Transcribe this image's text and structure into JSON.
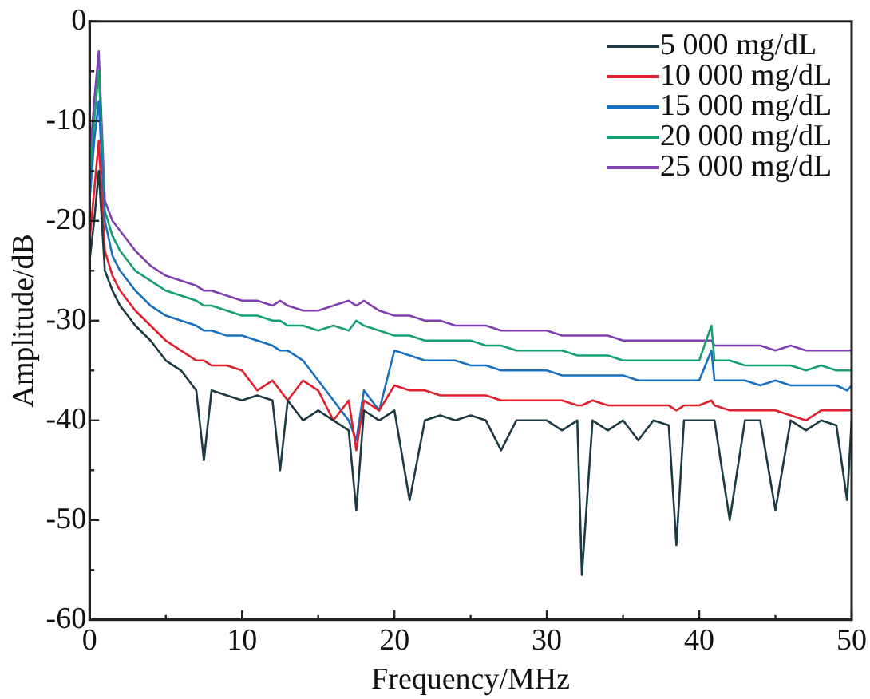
{
  "chart_data": {
    "type": "line",
    "xlabel": "Frequency/MHz",
    "ylabel": "Amplitude/dB",
    "x": [
      0,
      0.3,
      0.6,
      1,
      1.5,
      2,
      3,
      4,
      5,
      6,
      7,
      7.5,
      8,
      9,
      10,
      11,
      12,
      12.5,
      13,
      14,
      15,
      16,
      17,
      17.5,
      18,
      19,
      20,
      21,
      22,
      23,
      24,
      25,
      26,
      27,
      28,
      29,
      30,
      31,
      32,
      32.3,
      33,
      34,
      35,
      36,
      37,
      38,
      38.5,
      39,
      40,
      40.8,
      41,
      42,
      43,
      44,
      45,
      46,
      47,
      48,
      49,
      49.7,
      50
    ],
    "series": [
      {
        "name": "5 000 mg/dL",
        "color": "#1c3a44",
        "values": [
          -24,
          -20,
          -15,
          -25,
          -27,
          -28.5,
          -30.5,
          -32,
          -34,
          -35,
          -37,
          -44,
          -37,
          -37.5,
          -38,
          -37.5,
          -38,
          -45,
          -38,
          -40,
          -39,
          -40,
          -41,
          -49,
          -39,
          -40,
          -39,
          -48,
          -40,
          -39.5,
          -40,
          -39.5,
          -40,
          -43,
          -40,
          -40,
          -40,
          -41,
          -40,
          -55.5,
          -40,
          -41,
          -40,
          -42,
          -40,
          -40.5,
          -52.5,
          -40,
          -40,
          -40,
          -40,
          -50,
          -40,
          -40,
          -49,
          -40,
          -41,
          -40,
          -40.5,
          -48,
          -40
        ]
      },
      {
        "name": "10 000 mg/dL",
        "color": "#e0202c",
        "values": [
          -22,
          -17,
          -12,
          -23,
          -25.5,
          -27,
          -29,
          -30.5,
          -32,
          -33,
          -34,
          -34,
          -34.5,
          -34.5,
          -35,
          -37,
          -36,
          -37,
          -38,
          -36,
          -37,
          -40,
          -38,
          -43,
          -38,
          -39,
          -36.5,
          -37,
          -37,
          -37.5,
          -37.5,
          -37.5,
          -37.5,
          -38,
          -38,
          -38,
          -38,
          -38,
          -38.5,
          -38.5,
          -38,
          -38.5,
          -38.5,
          -38.5,
          -38.5,
          -38.5,
          -39,
          -38.5,
          -38.5,
          -38,
          -38.5,
          -39,
          -39,
          -39,
          -39,
          -39.5,
          -40,
          -39,
          -39,
          -39,
          -39
        ]
      },
      {
        "name": "15 000 mg/dL",
        "color": "#1a70c0",
        "values": [
          -18,
          -12,
          -8,
          -20,
          -23.5,
          -25,
          -27,
          -28.5,
          -29.5,
          -30,
          -30.5,
          -31,
          -31,
          -31.5,
          -31.5,
          -32,
          -32.5,
          -33,
          -33,
          -34,
          -36,
          -38,
          -40,
          -42,
          -37,
          -39,
          -33,
          -33.5,
          -34,
          -34,
          -34,
          -34.5,
          -34.5,
          -35,
          -35,
          -35,
          -35,
          -35.5,
          -35.5,
          -35.5,
          -35.5,
          -35.5,
          -35.5,
          -36,
          -36,
          -36,
          -36,
          -36,
          -36,
          -33,
          -36,
          -36,
          -36,
          -36.5,
          -36,
          -36.5,
          -36.5,
          -36.5,
          -36.5,
          -37,
          -36.5
        ]
      },
      {
        "name": "20 000 mg/dL",
        "color": "#16a070",
        "values": [
          -16,
          -10,
          -5,
          -19,
          -21.5,
          -23,
          -25,
          -26,
          -27,
          -27.5,
          -28,
          -28.5,
          -28.5,
          -29,
          -29.5,
          -29.5,
          -30,
          -30,
          -30.5,
          -30.5,
          -31,
          -30.5,
          -31,
          -30,
          -30.5,
          -31,
          -31.5,
          -31.5,
          -32,
          -32,
          -32,
          -32,
          -32.5,
          -32.5,
          -33,
          -33,
          -33,
          -33,
          -33.5,
          -33.5,
          -33.5,
          -33.5,
          -34,
          -34,
          -34,
          -34,
          -34,
          -34,
          -34,
          -30.5,
          -34,
          -34,
          -34.5,
          -34.5,
          -34.5,
          -34.5,
          -35,
          -34.5,
          -35,
          -35,
          -35
        ]
      },
      {
        "name": "25 000 mg/dL",
        "color": "#8040b0",
        "values": [
          -14,
          -8,
          -3,
          -18,
          -20,
          -21,
          -23,
          -24.5,
          -25.5,
          -26,
          -26.5,
          -27,
          -27,
          -27.5,
          -28,
          -28,
          -28.5,
          -28,
          -28.5,
          -29,
          -29,
          -28.5,
          -28,
          -28.5,
          -28,
          -29,
          -29.5,
          -29.5,
          -30,
          -30,
          -30.5,
          -30.5,
          -30.5,
          -31,
          -31,
          -31,
          -31,
          -31.5,
          -31.5,
          -31.5,
          -31.5,
          -31.5,
          -32,
          -32,
          -32,
          -32,
          -32,
          -32,
          -32,
          -32,
          -32.5,
          -32.5,
          -32.5,
          -32.5,
          -33,
          -32.5,
          -33,
          -33,
          -33,
          -33,
          -33
        ]
      }
    ],
    "xlim": [
      0,
      50
    ],
    "xticks": [
      0,
      {
        "value": 5,
        "label": null
      },
      10,
      {
        "value": 15,
        "label": null
      },
      20,
      {
        "value": 25,
        "label": null
      },
      30,
      {
        "value": 35,
        "label": null
      },
      40,
      {
        "value": 45,
        "label": null
      },
      50
    ],
    "ylim": [
      -60,
      0
    ],
    "yticks": [
      -60,
      {
        "value": -55,
        "label": null
      },
      -50,
      {
        "value": -45,
        "label": null
      },
      -40,
      {
        "value": -35,
        "label": null
      },
      -30,
      {
        "value": -25,
        "label": null
      },
      -20,
      {
        "value": -15,
        "label": null
      },
      -10,
      {
        "value": -5,
        "label": null
      },
      0
    ],
    "legend": "top right",
    "marker": "none",
    "line_style": "solid"
  }
}
